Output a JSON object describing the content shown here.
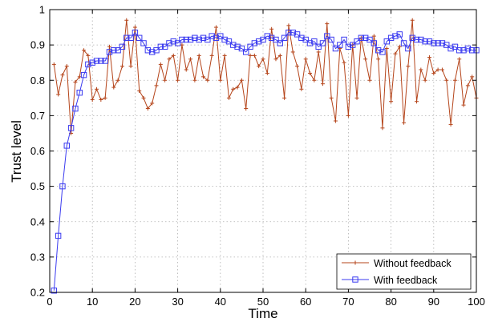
{
  "chart_data": {
    "type": "line",
    "xlabel": "Time",
    "ylabel": "Trust level",
    "xlim": [
      0,
      100
    ],
    "ylim": [
      0.2,
      1
    ],
    "xticks": [
      0,
      10,
      20,
      30,
      40,
      50,
      60,
      70,
      80,
      90,
      100
    ],
    "yticks": [
      0.2,
      0.3,
      0.4,
      0.5,
      0.6,
      0.7,
      0.8,
      0.9,
      1
    ],
    "xtick_labels": [
      "0",
      "10",
      "20",
      "30",
      "40",
      "50",
      "60",
      "70",
      "80",
      "90",
      "100"
    ],
    "ytick_labels": [
      "0.2",
      "0.3",
      "0.4",
      "0.5",
      "0.6",
      "0.7",
      "0.8",
      "0.9",
      "1"
    ],
    "grid": true,
    "legend_position": "bottom-right",
    "x": [
      1,
      2,
      3,
      4,
      5,
      6,
      7,
      8,
      9,
      10,
      11,
      12,
      13,
      14,
      15,
      16,
      17,
      18,
      19,
      20,
      21,
      22,
      23,
      24,
      25,
      26,
      27,
      28,
      29,
      30,
      31,
      32,
      33,
      34,
      35,
      36,
      37,
      38,
      39,
      40,
      41,
      42,
      43,
      44,
      45,
      46,
      47,
      48,
      49,
      50,
      51,
      52,
      53,
      54,
      55,
      56,
      57,
      58,
      59,
      60,
      61,
      62,
      63,
      64,
      65,
      66,
      67,
      68,
      69,
      70,
      71,
      72,
      73,
      74,
      75,
      76,
      77,
      78,
      79,
      80,
      81,
      82,
      83,
      84,
      85,
      86,
      87,
      88,
      89,
      90,
      91,
      92,
      93,
      94,
      95,
      96,
      97,
      98,
      99,
      100
    ],
    "series": [
      {
        "name": "Without feedback",
        "color": "#b5451b",
        "marker": "plus",
        "values": [
          0.845,
          0.76,
          0.815,
          0.84,
          0.65,
          0.795,
          0.81,
          0.885,
          0.87,
          0.745,
          0.775,
          0.745,
          0.75,
          0.895,
          0.78,
          0.8,
          0.84,
          0.97,
          0.84,
          0.95,
          0.77,
          0.75,
          0.72,
          0.735,
          0.785,
          0.845,
          0.8,
          0.86,
          0.87,
          0.8,
          0.9,
          0.83,
          0.86,
          0.8,
          0.87,
          0.81,
          0.8,
          0.87,
          0.95,
          0.8,
          0.87,
          0.75,
          0.775,
          0.78,
          0.8,
          0.72,
          0.87,
          0.87,
          0.84,
          0.86,
          0.82,
          0.945,
          0.86,
          0.87,
          0.75,
          0.955,
          0.88,
          0.84,
          0.775,
          0.86,
          0.82,
          0.8,
          0.88,
          0.79,
          0.96,
          0.75,
          0.685,
          0.89,
          0.85,
          0.7,
          0.9,
          0.75,
          0.92,
          0.86,
          0.8,
          0.925,
          0.86,
          0.665,
          0.89,
          0.74,
          0.875,
          0.895,
          0.68,
          0.84,
          0.97,
          0.74,
          0.83,
          0.8,
          0.865,
          0.82,
          0.83,
          0.83,
          0.8,
          0.675,
          0.8,
          0.86,
          0.73,
          0.785,
          0.81,
          0.75
        ]
      },
      {
        "name": "With feedback",
        "color": "#3b3bf0",
        "marker": "square",
        "values": [
          0.205,
          0.36,
          0.5,
          0.615,
          0.665,
          0.72,
          0.765,
          0.815,
          0.845,
          0.85,
          0.855,
          0.855,
          0.855,
          0.88,
          0.885,
          0.885,
          0.895,
          0.92,
          0.92,
          0.935,
          0.92,
          0.905,
          0.885,
          0.88,
          0.885,
          0.895,
          0.895,
          0.905,
          0.91,
          0.905,
          0.915,
          0.915,
          0.915,
          0.92,
          0.915,
          0.92,
          0.915,
          0.925,
          0.92,
          0.925,
          0.915,
          0.91,
          0.9,
          0.895,
          0.89,
          0.88,
          0.895,
          0.905,
          0.91,
          0.915,
          0.925,
          0.92,
          0.915,
          0.905,
          0.92,
          0.935,
          0.935,
          0.93,
          0.92,
          0.915,
          0.905,
          0.91,
          0.895,
          0.905,
          0.925,
          0.915,
          0.89,
          0.9,
          0.915,
          0.895,
          0.9,
          0.91,
          0.92,
          0.92,
          0.915,
          0.905,
          0.885,
          0.88,
          0.91,
          0.92,
          0.925,
          0.93,
          0.905,
          0.89,
          0.92,
          0.915,
          0.915,
          0.91,
          0.91,
          0.905,
          0.905,
          0.905,
          0.9,
          0.89,
          0.895,
          0.885,
          0.885,
          0.89,
          0.885,
          0.885
        ]
      }
    ]
  }
}
